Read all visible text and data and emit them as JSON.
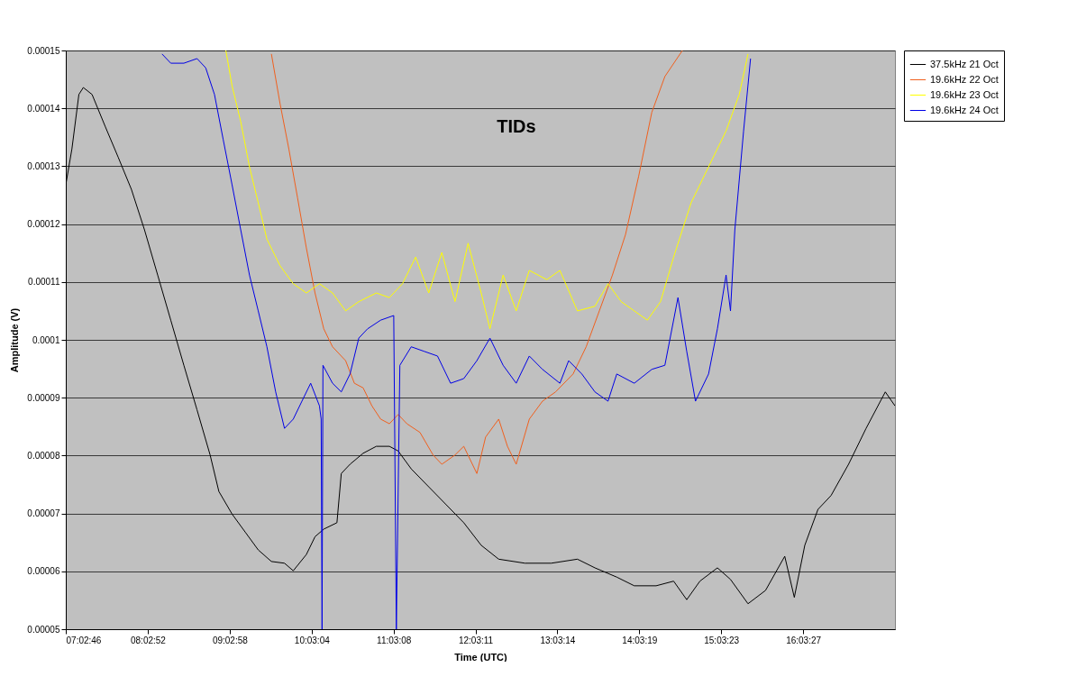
{
  "chart_data": {
    "type": "line",
    "title": "TIDs",
    "xlabel": "Time (UTC)",
    "ylabel": "Amplitude (V)",
    "xlim": [
      7.046,
      17.18
    ],
    "ylim": [
      5e-05,
      0.00015
    ],
    "xticks": [
      {
        "value": 7.0461,
        "label": "07:02:46"
      },
      {
        "value": 8.0478,
        "label": "08:02:52"
      },
      {
        "value": 9.0494,
        "label": "09:02:58"
      },
      {
        "value": 10.0511,
        "label": "10:03:04"
      },
      {
        "value": 11.0522,
        "label": "11:03:08"
      },
      {
        "value": 12.0531,
        "label": "12:03:11"
      },
      {
        "value": 13.0539,
        "label": "13:03:14"
      },
      {
        "value": 14.0553,
        "label": "14:03:19"
      },
      {
        "value": 15.0564,
        "label": "15:03:23"
      },
      {
        "value": 16.0575,
        "label": "16:03:27"
      }
    ],
    "yticks": [
      {
        "value": 5e-05,
        "label": "0.00005"
      },
      {
        "value": 6e-05,
        "label": "0.00006"
      },
      {
        "value": 7e-05,
        "label": "0.00007"
      },
      {
        "value": 8e-05,
        "label": "0.00008"
      },
      {
        "value": 9e-05,
        "label": "0.00009"
      },
      0.0001,
      0.00011,
      0.00012,
      0.00013,
      0.00014,
      0.00015
    ],
    "grid": "y",
    "legend": "right",
    "marker": "none",
    "line_style": "solid",
    "series": [
      {
        "name": "37.5kHz 21 Oct",
        "color": "#000000",
        "x": [
          7.046,
          7.121,
          7.206,
          7.26,
          7.367,
          7.527,
          7.688,
          7.848,
          8.008,
          8.169,
          8.329,
          8.489,
          8.65,
          8.81,
          8.917,
          9.078,
          9.238,
          9.398,
          9.559,
          9.719,
          9.826,
          9.986,
          10.093,
          10.2,
          10.36,
          10.413,
          10.52,
          10.68,
          10.841,
          11.001,
          11.108,
          11.268,
          11.482,
          11.696,
          11.91,
          12.123,
          12.337,
          12.658,
          12.979,
          13.299,
          13.513,
          13.78,
          13.994,
          14.261,
          14.475,
          14.635,
          14.796,
          15.01,
          15.17,
          15.384,
          15.598,
          15.833,
          15.95,
          16.078,
          16.239,
          16.399,
          16.613,
          16.827,
          17.062,
          17.18
        ],
        "values": [
          0.0001268,
          0.000133,
          0.0001424,
          0.0001436,
          0.0001424,
          0.0001369,
          0.0001315,
          0.000126,
          0.000119,
          0.0001112,
          0.0001034,
          9.56e-05,
          8.79e-05,
          8.01e-05,
          7.38e-05,
          6.99e-05,
          6.68e-05,
          6.37e-05,
          6.17e-05,
          6.14e-05,
          6.01e-05,
          6.29e-05,
          6.6e-05,
          6.73e-05,
          6.84e-05,
          7.69e-05,
          7.85e-05,
          8.04e-05,
          8.16e-05,
          8.16e-05,
          8.08e-05,
          7.77e-05,
          7.46e-05,
          7.15e-05,
          6.84e-05,
          6.45e-05,
          6.21e-05,
          6.14e-05,
          6.14e-05,
          6.21e-05,
          6.06e-05,
          5.9e-05,
          5.75e-05,
          5.75e-05,
          5.83e-05,
          5.51e-05,
          5.83e-05,
          6.06e-05,
          5.86e-05,
          5.44e-05,
          5.67e-05,
          6.26e-05,
          5.55e-05,
          6.45e-05,
          7.07e-05,
          7.31e-05,
          7.85e-05,
          8.47e-05,
          9.1e-05,
          8.86e-05
        ]
      },
      {
        "name": "19.6kHz 22 Oct",
        "color": "#f0601e",
        "x": [
          9.559,
          9.665,
          9.772,
          9.879,
          9.986,
          10.092,
          10.199,
          10.306,
          10.466,
          10.573,
          10.68,
          10.787,
          10.894,
          11.001,
          11.108,
          11.215,
          11.375,
          11.535,
          11.642,
          11.803,
          11.91,
          12.07,
          12.177,
          12.337,
          12.444,
          12.551,
          12.711,
          12.872,
          13.032,
          13.246,
          13.406,
          13.567,
          13.727,
          13.887,
          14.048,
          14.208,
          14.368,
          14.582
        ],
        "values": [
          0.0001494,
          0.0001408,
          0.000133,
          0.0001245,
          0.0001159,
          0.0001081,
          0.0001019,
          9.88e-05,
          9.64e-05,
          9.25e-05,
          9.17e-05,
          8.86e-05,
          8.63e-05,
          8.55e-05,
          8.71e-05,
          8.55e-05,
          8.4e-05,
          8.01e-05,
          7.85e-05,
          8.01e-05,
          8.16e-05,
          7.69e-05,
          8.32e-05,
          8.63e-05,
          8.16e-05,
          7.85e-05,
          8.63e-05,
          8.94e-05,
          9.1e-05,
          9.41e-05,
          9.88e-05,
          0.000105,
          0.0001112,
          0.0001182,
          0.0001283,
          0.0001393,
          0.0001455,
          0.00015
        ]
      },
      {
        "name": "19.6kHz 23 Oct",
        "color": "#ffff00",
        "x": [
          9.002,
          9.078,
          9.184,
          9.291,
          9.398,
          9.504,
          9.665,
          9.826,
          9.986,
          10.146,
          10.306,
          10.466,
          10.627,
          10.841,
          11.001,
          11.161,
          11.322,
          11.482,
          11.642,
          11.803,
          11.963,
          12.123,
          12.23,
          12.391,
          12.551,
          12.711,
          12.925,
          13.085,
          13.299,
          13.513,
          13.673,
          13.834,
          13.994,
          14.154,
          14.315,
          14.475,
          14.689,
          14.902,
          15.116,
          15.277,
          15.384
        ],
        "values": [
          0.00015,
          0.0001439,
          0.0001377,
          0.0001299,
          0.0001237,
          0.0001174,
          0.0001128,
          0.0001097,
          0.0001081,
          0.0001097,
          0.0001081,
          0.000105,
          0.0001066,
          0.0001081,
          0.0001073,
          0.0001097,
          0.0001143,
          0.0001081,
          0.0001151,
          0.0001066,
          0.0001167,
          0.0001081,
          0.0001019,
          0.0001112,
          0.000105,
          0.000112,
          0.0001104,
          0.000112,
          0.000105,
          0.0001058,
          0.0001097,
          0.0001066,
          0.000105,
          0.0001034,
          0.0001066,
          0.0001143,
          0.0001237,
          0.0001299,
          0.0001361,
          0.0001424,
          0.0001494
        ]
      },
      {
        "name": "19.6kHz 24 Oct",
        "color": "#0000e6",
        "x": [
          8.222,
          8.329,
          8.489,
          8.65,
          8.756,
          8.863,
          8.97,
          9.078,
          9.184,
          9.291,
          9.398,
          9.504,
          9.611,
          9.719,
          9.826,
          9.932,
          10.039,
          10.146,
          10.167,
          10.178,
          10.189,
          10.306,
          10.413,
          10.52,
          10.627,
          10.734,
          10.894,
          11.054,
          11.086,
          11.129,
          11.268,
          11.428,
          11.589,
          11.749,
          11.91,
          12.07,
          12.23,
          12.391,
          12.551,
          12.711,
          12.872,
          13.085,
          13.192,
          13.353,
          13.513,
          13.673,
          13.78,
          13.994,
          14.208,
          14.368,
          14.528,
          14.635,
          14.742,
          14.902,
          15.01,
          15.116,
          15.17,
          15.223,
          15.33,
          15.415
        ],
        "values": [
          0.0001494,
          0.0001478,
          0.0001478,
          0.0001486,
          0.000147,
          0.0001424,
          0.0001346,
          0.0001268,
          0.000119,
          0.0001112,
          0.000105,
          9.88e-05,
          9.1e-05,
          8.47e-05,
          8.63e-05,
          8.94e-05,
          9.25e-05,
          8.86e-05,
          8.63e-05,
          5e-05,
          9.56e-05,
          9.25e-05,
          9.1e-05,
          9.41e-05,
          0.0001003,
          0.0001019,
          0.0001034,
          0.0001042,
          5e-05,
          9.56e-05,
          9.88e-05,
          9.8e-05,
          9.72e-05,
          9.25e-05,
          9.33e-05,
          9.64e-05,
          0.0001003,
          9.56e-05,
          9.25e-05,
          9.72e-05,
          9.49e-05,
          9.25e-05,
          9.64e-05,
          9.41e-05,
          9.1e-05,
          8.94e-05,
          9.41e-05,
          9.25e-05,
          9.49e-05,
          9.56e-05,
          0.0001073,
          9.8e-05,
          8.94e-05,
          9.41e-05,
          0.0001019,
          0.0001112,
          0.000105,
          0.000119,
          0.0001361,
          0.0001486
        ]
      }
    ]
  }
}
